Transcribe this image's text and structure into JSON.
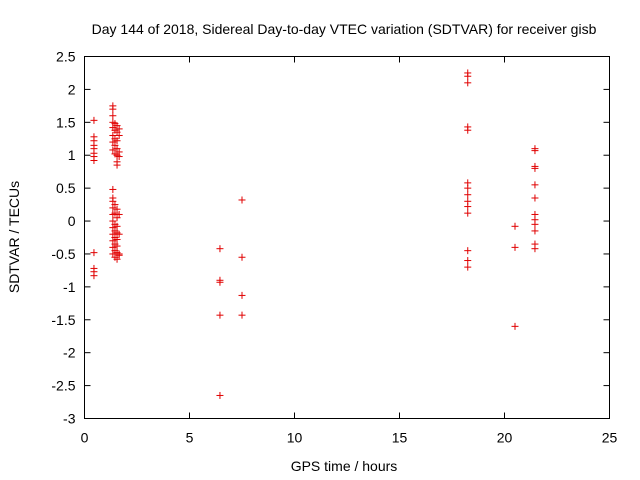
{
  "chart_data": {
    "type": "scatter",
    "title": "Day 144 of 2018, Sidereal Day-to-day VTEC variation (SDTVAR) for receiver gisb",
    "xlabel": "GPS time / hours",
    "ylabel": "SDTVAR / TECUs",
    "xlim": [
      0,
      25
    ],
    "ylim": [
      -3,
      2.5
    ],
    "x_ticks": [
      0,
      5,
      10,
      15,
      20,
      25
    ],
    "y_ticks": [
      -3,
      -2.5,
      -2,
      -1.5,
      -1,
      -0.5,
      0,
      0.5,
      1,
      1.5,
      2,
      2.5
    ],
    "marker": "+",
    "color": "#e00000",
    "grid": false,
    "series": [
      {
        "name": "SDTVAR",
        "points": [
          [
            0.45,
            1.53
          ],
          [
            0.45,
            1.28
          ],
          [
            0.45,
            1.22
          ],
          [
            0.45,
            1.15
          ],
          [
            0.45,
            1.1
          ],
          [
            0.45,
            1.03
          ],
          [
            0.45,
            0.98
          ],
          [
            0.45,
            0.92
          ],
          [
            0.45,
            -0.48
          ],
          [
            0.45,
            -0.72
          ],
          [
            0.45,
            -0.77
          ],
          [
            0.45,
            -0.83
          ],
          [
            1.35,
            1.75
          ],
          [
            1.35,
            1.7
          ],
          [
            1.35,
            1.6
          ],
          [
            1.35,
            1.5
          ],
          [
            1.35,
            1.42
          ],
          [
            1.35,
            1.3
          ],
          [
            1.35,
            1.2
          ],
          [
            1.35,
            1.08
          ],
          [
            1.35,
            0.48
          ],
          [
            1.35,
            0.35
          ],
          [
            1.35,
            0.3
          ],
          [
            1.35,
            0.2
          ],
          [
            1.35,
            0.1
          ],
          [
            1.35,
            0.0
          ],
          [
            1.35,
            -0.1
          ],
          [
            1.35,
            -0.2
          ],
          [
            1.35,
            -0.3
          ],
          [
            1.35,
            -0.4
          ],
          [
            1.35,
            -0.5
          ],
          [
            1.45,
            1.48
          ],
          [
            1.45,
            1.38
          ],
          [
            1.45,
            1.25
          ],
          [
            1.45,
            1.15
          ],
          [
            1.45,
            1.02
          ],
          [
            1.45,
            0.25
          ],
          [
            1.45,
            0.12
          ],
          [
            1.45,
            -0.05
          ],
          [
            1.45,
            -0.15
          ],
          [
            1.45,
            -0.25
          ],
          [
            1.45,
            -0.35
          ],
          [
            1.45,
            -0.45
          ],
          [
            1.45,
            -0.55
          ],
          [
            1.55,
            1.45
          ],
          [
            1.55,
            1.35
          ],
          [
            1.55,
            1.22
          ],
          [
            1.55,
            1.1
          ],
          [
            1.55,
            1.0
          ],
          [
            1.55,
            0.9
          ],
          [
            1.55,
            0.85
          ],
          [
            1.55,
            0.18
          ],
          [
            1.55,
            0.05
          ],
          [
            1.55,
            -0.08
          ],
          [
            1.55,
            -0.18
          ],
          [
            1.55,
            -0.28
          ],
          [
            1.55,
            -0.38
          ],
          [
            1.55,
            -0.48
          ],
          [
            1.55,
            -0.58
          ],
          [
            1.65,
            1.4
          ],
          [
            1.65,
            1.3
          ],
          [
            1.65,
            1.05
          ],
          [
            1.65,
            0.98
          ],
          [
            1.65,
            0.1
          ],
          [
            1.65,
            -0.2
          ],
          [
            1.65,
            -0.5
          ],
          [
            1.65,
            -0.52
          ],
          [
            6.45,
            -0.42
          ],
          [
            6.45,
            -0.9
          ],
          [
            6.45,
            -0.93
          ],
          [
            6.45,
            -1.43
          ],
          [
            6.45,
            -2.65
          ],
          [
            7.5,
            0.32
          ],
          [
            7.5,
            -0.55
          ],
          [
            7.5,
            -1.13
          ],
          [
            7.5,
            -1.43
          ],
          [
            18.25,
            2.25
          ],
          [
            18.25,
            2.2
          ],
          [
            18.25,
            2.1
          ],
          [
            18.25,
            1.43
          ],
          [
            18.25,
            1.38
          ],
          [
            18.25,
            0.58
          ],
          [
            18.25,
            0.5
          ],
          [
            18.25,
            0.4
          ],
          [
            18.25,
            0.3
          ],
          [
            18.25,
            0.22
          ],
          [
            18.25,
            0.12
          ],
          [
            18.25,
            -0.45
          ],
          [
            18.25,
            -0.6
          ],
          [
            18.25,
            -0.7
          ],
          [
            20.5,
            -0.08
          ],
          [
            20.5,
            -0.4
          ],
          [
            20.5,
            -1.6
          ],
          [
            21.45,
            1.1
          ],
          [
            21.45,
            1.07
          ],
          [
            21.45,
            0.83
          ],
          [
            21.45,
            0.8
          ],
          [
            21.45,
            0.55
          ],
          [
            21.45,
            0.35
          ],
          [
            21.45,
            0.1
          ],
          [
            21.45,
            0.02
          ],
          [
            21.45,
            -0.05
          ],
          [
            21.45,
            -0.15
          ],
          [
            21.45,
            -0.35
          ],
          [
            21.45,
            -0.42
          ]
        ]
      }
    ]
  }
}
